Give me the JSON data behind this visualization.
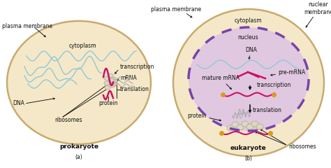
{
  "bg_color": "#ffffff",
  "cell_fill": "#f5e8c8",
  "cell_edge": "#c8aa70",
  "wave_color": "#90c8d8",
  "magenta": "#cc1166",
  "ribosome_fill": "#d8d8c8",
  "ribosome_edge": "#999988",
  "nucleus_fill": "#e0c8e0",
  "nucleus_edge": "#7744aa",
  "orange": "#e09820",
  "black": "#111111",
  "gray_wavy": "#aaaaaa",
  "label_fs": 5.5,
  "bold_fs": 6.5,
  "sub_fs": 5.5,
  "left": {
    "plasma_membrane": "plasma membrane",
    "cytoplasm": "cytoplasm",
    "dna": "DNA",
    "ribosomes": "ribosomes",
    "transcription": "transcription",
    "mrna": "mRNA",
    "translation": "translation",
    "protein": "protein"
  },
  "right": {
    "plasma_membrane": "plasma membrane",
    "nuclear_membrane": "nuclear\nmembrane",
    "cytoplasm": "cytoplasm",
    "nucleus": "nucleus",
    "dna": "DNA",
    "mature_mrna": "mature mRNA",
    "pre_mrna": "pre-mRNA",
    "transcription": "transcription",
    "translation": "translation",
    "protein": "protein",
    "ribosomes": "ribosomes"
  },
  "prokaryote": "prokaryote",
  "eukaryote": "eukaryote",
  "sub_a": "(a)",
  "sub_b": "(b)"
}
